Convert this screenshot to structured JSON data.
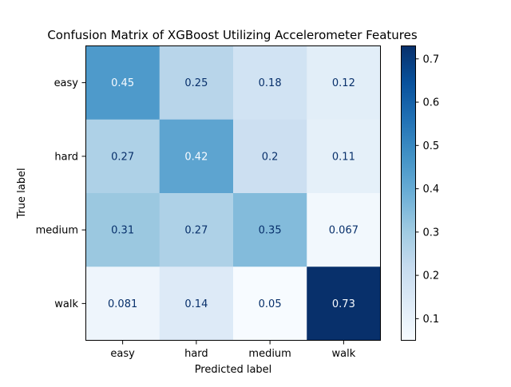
{
  "chart_data": {
    "type": "heatmap",
    "title": "Confusion Matrix of XGBoost Utilizing Accelerometer Features",
    "xlabel": "Predicted label",
    "ylabel": "True label",
    "x_categories": [
      "easy",
      "hard",
      "medium",
      "walk"
    ],
    "y_categories": [
      "easy",
      "hard",
      "medium",
      "walk"
    ],
    "values": [
      [
        0.45,
        0.25,
        0.18,
        0.12
      ],
      [
        0.27,
        0.42,
        0.2,
        0.11
      ],
      [
        0.31,
        0.27,
        0.35,
        0.067
      ],
      [
        0.081,
        0.14,
        0.05,
        0.73
      ]
    ],
    "cell_labels": [
      [
        "0.45",
        "0.25",
        "0.18",
        "0.12"
      ],
      [
        "0.27",
        "0.42",
        "0.2",
        "0.11"
      ],
      [
        "0.31",
        "0.27",
        "0.35",
        "0.067"
      ],
      [
        "0.081",
        "0.14",
        "0.05",
        "0.73"
      ]
    ],
    "colormap": "Blues",
    "color_range": [
      0.05,
      0.73
    ],
    "colorbar_ticks": [
      "0.1",
      "0.2",
      "0.3",
      "0.4",
      "0.5",
      "0.6",
      "0.7"
    ],
    "colors": {
      "low": "#f7fbff",
      "high": "#08306b",
      "text_light": "#f7fbff",
      "text_dark": "#08306b"
    }
  }
}
